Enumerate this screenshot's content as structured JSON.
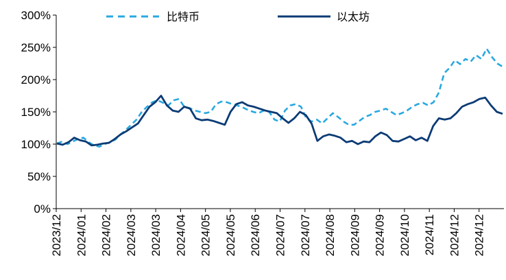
{
  "chart_data": {
    "type": "line",
    "title": "",
    "xlabel": "",
    "ylabel": "",
    "ylim": [
      0,
      300
    ],
    "y_ticks": [
      "0%",
      "50%",
      "100%",
      "150%",
      "200%",
      "250%",
      "300%"
    ],
    "x_ticks": [
      "2023/12",
      "2024/01",
      "2024/02",
      "2024/03",
      "2024/03",
      "2024/04",
      "2024/05",
      "2024/05",
      "2024/06",
      "2024/07",
      "2024/07",
      "2024/08",
      "2024/09",
      "2024/09",
      "2024/10",
      "2024/11",
      "2024/12",
      "2024/12"
    ],
    "legend": "top",
    "grid": false,
    "series": [
      {
        "name": "比特币",
        "color": "#29a8e0",
        "style": "dashed",
        "values": [
          101,
          104,
          100,
          104,
          108,
          110,
          103,
          98,
          96,
          100,
          103,
          107,
          115,
          122,
          130,
          138,
          150,
          158,
          165,
          168,
          164,
          160,
          168,
          170,
          158,
          156,
          152,
          150,
          148,
          150,
          162,
          166,
          165,
          162,
          160,
          157,
          153,
          150,
          148,
          152,
          150,
          138,
          135,
          152,
          160,
          162,
          158,
          140,
          135,
          138,
          132,
          140,
          148,
          142,
          135,
          130,
          130,
          136,
          142,
          145,
          150,
          152,
          155,
          150,
          145,
          148,
          152,
          158,
          162,
          164,
          160,
          165,
          180,
          210,
          218,
          230,
          224,
          232,
          228,
          238,
          232,
          248,
          235,
          225,
          220
        ]
      },
      {
        "name": "以太坊",
        "color": "#0b3b75",
        "style": "solid",
        "values": [
          101,
          99,
          103,
          110,
          106,
          104,
          98,
          99,
          101,
          102,
          108,
          115,
          120,
          126,
          132,
          145,
          158,
          165,
          175,
          160,
          152,
          150,
          158,
          155,
          140,
          137,
          138,
          136,
          133,
          130,
          150,
          162,
          165,
          160,
          158,
          155,
          152,
          150,
          148,
          140,
          133,
          140,
          150,
          145,
          132,
          105,
          112,
          115,
          113,
          110,
          103,
          105,
          100,
          104,
          103,
          112,
          118,
          114,
          105,
          104,
          108,
          112,
          106,
          110,
          105,
          128,
          140,
          138,
          140,
          148,
          158,
          162,
          165,
          170,
          172,
          160,
          150,
          147
        ]
      }
    ]
  }
}
